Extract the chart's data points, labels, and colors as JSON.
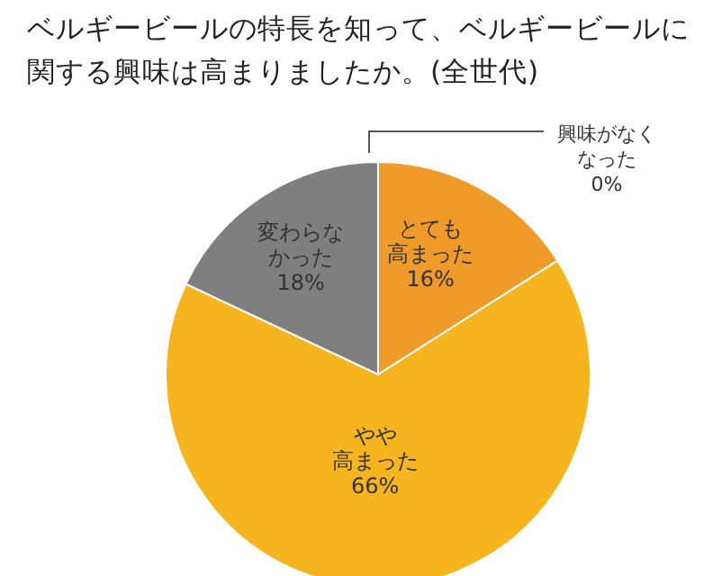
{
  "chart_data": {
    "type": "pie",
    "title": "ベルギービールの特長を知って、ベルギービールに関する興味は高まりましたか。(全世代)",
    "categories": [
      "とても高まった",
      "やや高まった",
      "変わらなかった",
      "興味がなくなった"
    ],
    "values": [
      16,
      66,
      18,
      0
    ],
    "value_labels": [
      "16%",
      "66%",
      "18%",
      "0%"
    ],
    "colors": [
      "#f09a2a",
      "#f6b41e",
      "#7f7f7f",
      "#bfbfbf"
    ]
  }
}
